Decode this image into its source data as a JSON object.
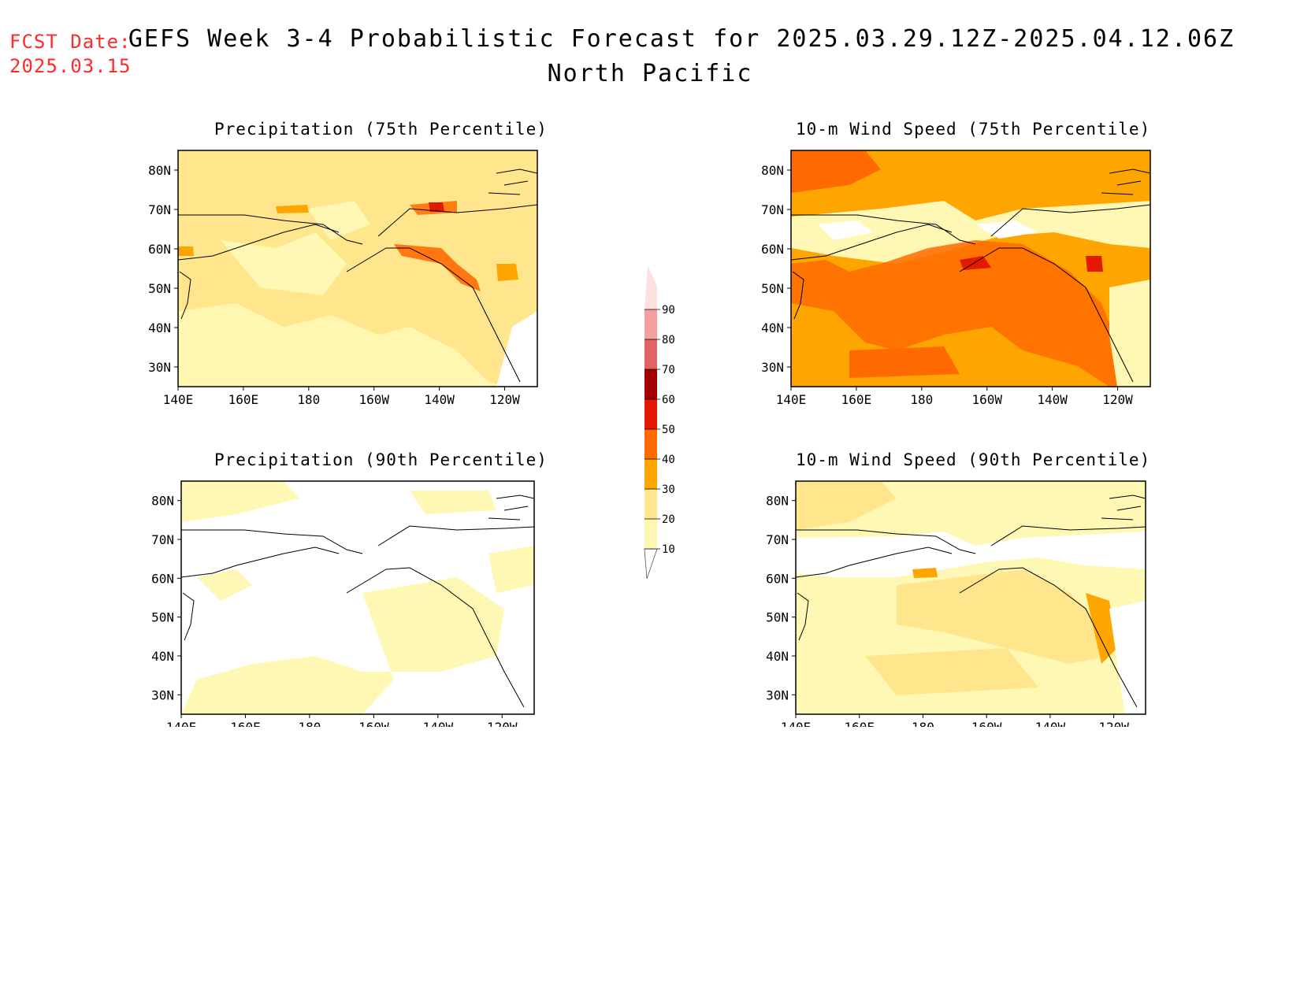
{
  "header": {
    "fcst_label": "FCST Date:",
    "fcst_date": "2025.03.15",
    "title": "GEFS Week 3-4 Probabilistic Forecast for 2025.03.29.12Z-2025.04.12.06Z",
    "region": "North Pacific"
  },
  "panels": [
    {
      "title": "Precipitation (75th Percentile)"
    },
    {
      "title": "10-m Wind Speed (75th Percentile)"
    },
    {
      "title": "Precipitation (90th Percentile)"
    },
    {
      "title": "10-m Wind Speed (90th Percentile)"
    }
  ],
  "axes": {
    "lat_ticks": [
      "80N",
      "70N",
      "60N",
      "50N",
      "40N",
      "30N"
    ],
    "lon_ticks": [
      "140E",
      "160E",
      "180",
      "160W",
      "140W",
      "120W"
    ]
  },
  "colorbar": {
    "levels": [
      "10",
      "20",
      "30",
      "40",
      "50",
      "60",
      "70",
      "80",
      "90"
    ],
    "colors": [
      "#fff8b4",
      "#ffe68c",
      "#ffa500",
      "#ff6a00",
      "#e31a00",
      "#a30000",
      "#e06464",
      "#f4a0a0",
      "#fde0e0"
    ]
  }
}
